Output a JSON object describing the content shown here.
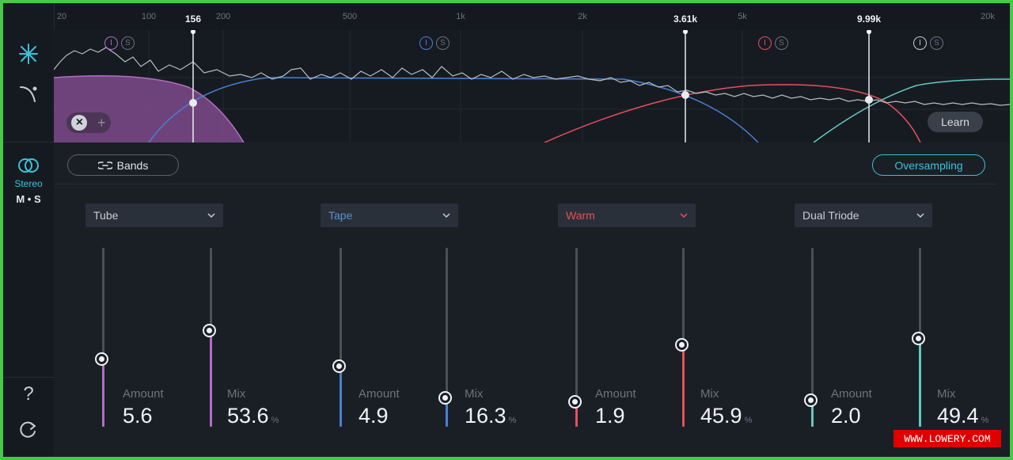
{
  "sidebar": {
    "stereo_label": "Stereo",
    "ms_label": "M • S",
    "help_label": "?"
  },
  "freq_scale": [
    "20",
    "100",
    "200",
    "500",
    "1k",
    "2k",
    "5k",
    "20k"
  ],
  "crossovers": [
    "156",
    "3.61k",
    "9.99k"
  ],
  "graph": {
    "band_badges": [
      "I",
      "S"
    ],
    "close_label": "×",
    "add_label": "+",
    "learn_label": "Learn"
  },
  "toolbar": {
    "bands_label": "Bands",
    "oversampling_label": "Oversampling"
  },
  "bands": [
    {
      "type": "Tube",
      "color": "#b06fc0",
      "amount_label": "Amount",
      "amount": "5.6",
      "amount_level": 0.38,
      "mix_label": "Mix",
      "mix": "53.6",
      "mix_level": 0.536,
      "mix_unit": "%"
    },
    {
      "type": "Tape",
      "color": "#4a7fd0",
      "amount_label": "Amount",
      "amount": "4.9",
      "amount_level": 0.34,
      "mix_label": "Mix",
      "mix": "16.3",
      "mix_level": 0.163,
      "mix_unit": "%"
    },
    {
      "type": "Warm",
      "color": "#e8505c",
      "amount_label": "Amount",
      "amount": "1.9",
      "amount_level": 0.14,
      "mix_label": "Mix",
      "mix": "45.9",
      "mix_level": 0.459,
      "mix_unit": "%"
    },
    {
      "type": "Dual Triode",
      "color": "#62c9c0",
      "amount_label": "Amount",
      "amount": "2.0",
      "amount_level": 0.15,
      "mix_label": "Mix",
      "mix": "49.4",
      "mix_level": 0.494,
      "mix_unit": "%"
    }
  ],
  "watermark": "WWW.LOWERY.COM"
}
